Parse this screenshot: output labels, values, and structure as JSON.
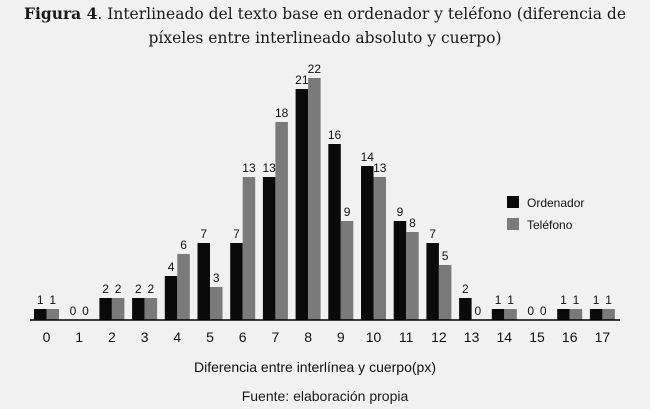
{
  "figure": {
    "label": "Figura 4",
    "text": ". Interlineado del texto base en ordenador y teléfono (diferencia de píxeles entre interlineado absoluto y cuerpo)"
  },
  "source": "Fuente: elaboración propia",
  "colors": {
    "ordenador": "#0a0a0a",
    "telefono": "#7a7a7a",
    "background": "#f1f1f1"
  },
  "chart_data": {
    "type": "bar",
    "title": "",
    "xlabel": "Diferencia entre interlínea y cuerpo(px)",
    "ylabel": "",
    "ylim": [
      0,
      22
    ],
    "grid": false,
    "legend_position": "right",
    "categories": [
      "0",
      "1",
      "2",
      "3",
      "4",
      "5",
      "6",
      "7",
      "8",
      "9",
      "10",
      "11",
      "12",
      "13",
      "14",
      "15",
      "16",
      "17"
    ],
    "series": [
      {
        "name": "Ordenador",
        "values": [
          1,
          0,
          2,
          2,
          4,
          7,
          7,
          13,
          21,
          16,
          14,
          9,
          7,
          2,
          1,
          0,
          1,
          1
        ]
      },
      {
        "name": "Teléfono",
        "values": [
          1,
          0,
          2,
          2,
          6,
          3,
          13,
          18,
          22,
          9,
          13,
          8,
          5,
          0,
          1,
          0,
          1,
          1
        ]
      }
    ]
  }
}
